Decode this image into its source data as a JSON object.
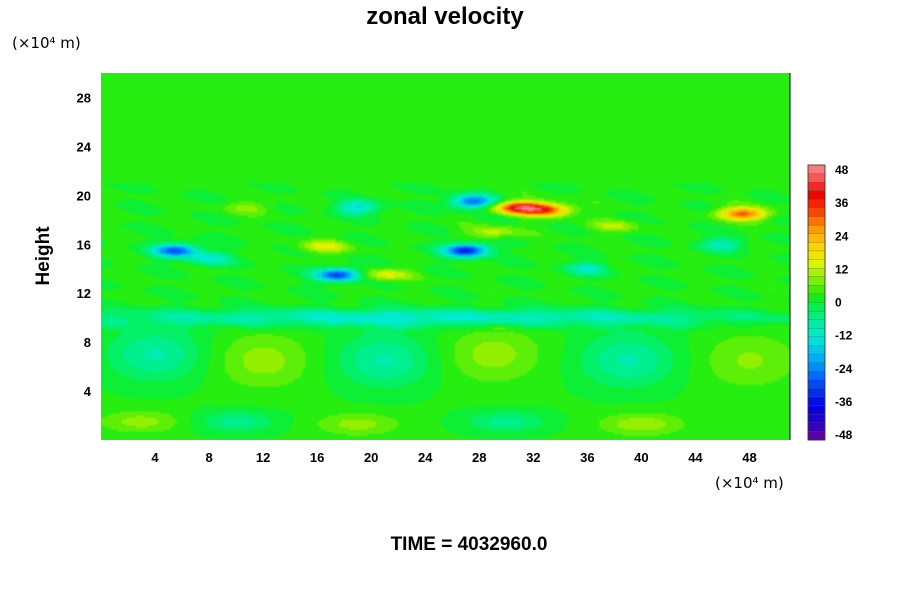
{
  "chart_data": {
    "type": "heatmap",
    "title": "zonal velocity",
    "ylabel": "Height",
    "xlabel": "",
    "x_unit": "(×10⁴ m)",
    "y_unit": "(×10⁴ m)",
    "xlim": [
      0,
      51
    ],
    "ylim": [
      0,
      30
    ],
    "x_ticks": [
      4,
      8,
      12,
      16,
      20,
      24,
      28,
      32,
      36,
      40,
      44,
      48
    ],
    "y_ticks": [
      4,
      8,
      12,
      16,
      20,
      24,
      28
    ],
    "colorbar": {
      "ticks": [
        48,
        36,
        24,
        12,
        0,
        -12,
        -24,
        -36,
        -48
      ],
      "min": -48,
      "max": 48
    },
    "background_value": 2,
    "features": [
      {
        "x": 5.5,
        "y": 15.5,
        "value": -28,
        "kind": "jet-low"
      },
      {
        "x": 17.5,
        "y": 13.5,
        "value": -30,
        "kind": "jet-low"
      },
      {
        "x": 19,
        "y": 19,
        "value": -14,
        "kind": "jet-low"
      },
      {
        "x": 27,
        "y": 15.5,
        "value": -34,
        "kind": "jet-low"
      },
      {
        "x": 27.5,
        "y": 19.5,
        "value": -26,
        "kind": "jet-low"
      },
      {
        "x": 31,
        "y": 19,
        "value": 38,
        "kind": "jet-high"
      },
      {
        "x": 33,
        "y": 18.8,
        "value": 28,
        "kind": "jet-high"
      },
      {
        "x": 47.5,
        "y": 18.5,
        "value": 30,
        "kind": "jet-high"
      },
      {
        "x": 16.5,
        "y": 15.8,
        "value": 14,
        "kind": "jet-high"
      },
      {
        "x": 21,
        "y": 13.5,
        "value": 14,
        "kind": "jet-high"
      },
      {
        "x": 29,
        "y": 17,
        "value": 12,
        "kind": "jet-high"
      },
      {
        "x": 38,
        "y": 17.5,
        "value": 10,
        "kind": "jet-high"
      },
      {
        "x": 11,
        "y": 19,
        "value": 8,
        "kind": "jet-high"
      },
      {
        "x": 8,
        "y": 14.8,
        "value": -12,
        "kind": "jet-low"
      },
      {
        "x": 36,
        "y": 14,
        "value": -10,
        "kind": "jet-low"
      },
      {
        "x": 46,
        "y": 16,
        "value": -10,
        "kind": "jet-low"
      },
      {
        "x": 24,
        "y": 10,
        "value": -12,
        "kind": "band-low"
      },
      {
        "x": 4,
        "y": 7,
        "value": -8,
        "kind": "cell-low"
      },
      {
        "x": 12,
        "y": 6.5,
        "value": 9,
        "kind": "cell-high"
      },
      {
        "x": 21,
        "y": 6.5,
        "value": -8,
        "kind": "cell-low"
      },
      {
        "x": 29,
        "y": 7,
        "value": 9,
        "kind": "cell-high"
      },
      {
        "x": 39,
        "y": 6.5,
        "value": -8,
        "kind": "cell-low"
      },
      {
        "x": 48,
        "y": 6.5,
        "value": 8,
        "kind": "cell-high"
      },
      {
        "x": 3,
        "y": 1.5,
        "value": 9,
        "kind": "surface-high"
      },
      {
        "x": 19,
        "y": 1.3,
        "value": 9,
        "kind": "surface-high"
      },
      {
        "x": 40,
        "y": 1.3,
        "value": 10,
        "kind": "surface-high"
      },
      {
        "x": 10,
        "y": 1.5,
        "value": -6,
        "kind": "surface-low"
      },
      {
        "x": 30,
        "y": 1.5,
        "value": -6,
        "kind": "surface-low"
      }
    ]
  },
  "footer": {
    "time_label": "TIME = 4032960.0"
  }
}
